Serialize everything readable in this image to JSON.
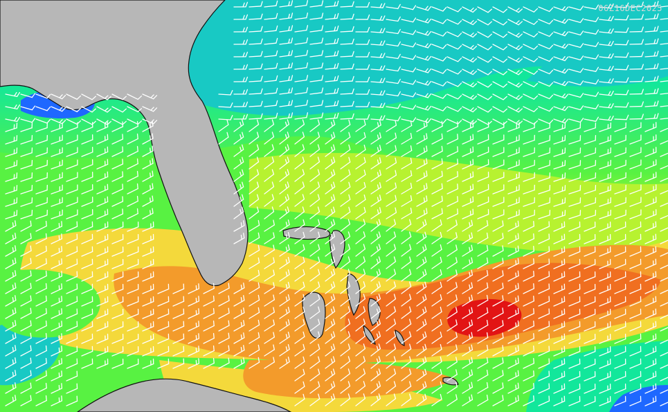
{
  "timestamp": "06Z16DEC2025",
  "colors": {
    "land": "#b7b7b7",
    "coast": "#111111",
    "barb": "#ffffff",
    "field_scale": [
      "#0a1edc",
      "#1e68ff",
      "#18c9c4",
      "#12e79b",
      "#58f242",
      "#b7f230",
      "#f4d93b",
      "#f39b2b",
      "#f06f20",
      "#e21414"
    ]
  }
}
